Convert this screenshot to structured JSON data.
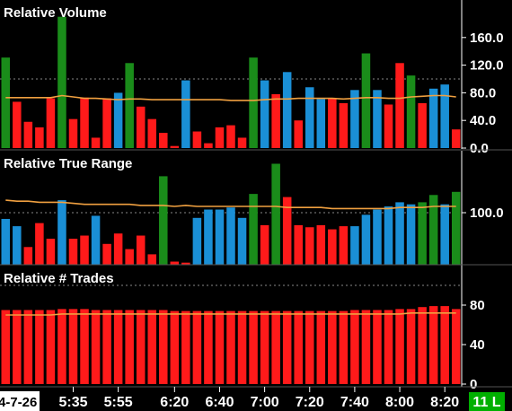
{
  "chart_data": [
    {
      "type": "bar",
      "title": "Relative Volume",
      "ylim": [
        0,
        200
      ],
      "yticks": [
        "160.0",
        "120.0",
        "80.0",
        "40.0",
        "0.0"
      ],
      "ytick_values": [
        160,
        120,
        80,
        40,
        0
      ],
      "reference_line": 100,
      "bar_colors": [
        "green",
        "red",
        "red",
        "red",
        "red",
        "green",
        "red",
        "red",
        "red",
        "red",
        "blue",
        "green",
        "red",
        "red",
        "red",
        "red",
        "blue",
        "red",
        "red",
        "red",
        "red",
        "red",
        "green",
        "blue",
        "red",
        "blue",
        "red",
        "blue",
        "blue",
        "red",
        "red",
        "blue",
        "green",
        "blue",
        "red",
        "red",
        "green",
        "red",
        "blue",
        "blue",
        "red"
      ],
      "values": [
        131,
        67,
        38,
        30,
        72,
        190,
        42,
        73,
        15,
        72,
        80,
        123,
        60,
        42,
        22,
        3,
        98,
        24,
        7,
        30,
        33,
        15,
        131,
        98,
        78,
        110,
        40,
        88,
        71,
        72,
        65,
        84,
        137,
        84,
        63,
        123,
        105,
        65,
        86,
        92,
        27
      ],
      "series": [
        {
          "name": "average",
          "values": [
            73,
            73,
            73,
            73,
            73,
            76,
            74,
            72,
            72,
            71,
            70,
            71,
            71,
            70,
            70,
            70,
            70,
            70,
            70,
            70,
            69,
            69,
            69,
            70,
            71,
            71,
            72,
            72,
            72,
            72,
            71,
            72,
            73,
            73,
            72,
            72,
            74,
            75,
            76,
            76,
            74
          ]
        }
      ]
    },
    {
      "type": "bar",
      "title": "Relative True Range",
      "ylim": [
        50,
        150
      ],
      "yticks": [
        "100.0"
      ],
      "ytick_values": [
        100
      ],
      "reference_line": 100,
      "bar_colors": [
        "blue",
        "blue",
        "red",
        "red",
        "red",
        "blue",
        "red",
        "red",
        "blue",
        "red",
        "red",
        "red",
        "red",
        "red",
        "green",
        "red",
        "red",
        "blue",
        "blue",
        "blue",
        "blue",
        "blue",
        "green",
        "red",
        "green",
        "red",
        "red",
        "red",
        "red",
        "red",
        "red",
        "blue",
        "blue",
        "blue",
        "blue",
        "blue",
        "blue",
        "green",
        "green",
        "blue",
        "green"
      ],
      "values": [
        94,
        87,
        67,
        90,
        75,
        112,
        75,
        78,
        97,
        70,
        80,
        65,
        78,
        60,
        135,
        53,
        52,
        95,
        103,
        103,
        105,
        95,
        118,
        88,
        147,
        115,
        88,
        86,
        88,
        84,
        87,
        87,
        98,
        103,
        106,
        110,
        108,
        110,
        117,
        108,
        120
      ],
      "series": [
        {
          "name": "average",
          "values": [
            112,
            111,
            111,
            110,
            110,
            110,
            109,
            108,
            108,
            108,
            108,
            108,
            107,
            107,
            107,
            106,
            107,
            106,
            106,
            106,
            106,
            106,
            106,
            106,
            106,
            105,
            105,
            105,
            105,
            104,
            104,
            104,
            104,
            104,
            104,
            105,
            105,
            105,
            106,
            106,
            106
          ]
        }
      ]
    },
    {
      "type": "bar",
      "title": "Relative # Trades",
      "ylim": [
        0,
        100
      ],
      "yticks": [
        "80",
        "40",
        "0"
      ],
      "ytick_values": [
        80,
        40,
        0
      ],
      "reference_line": 100,
      "bar_colors": [
        "red"
      ],
      "values": [
        75,
        75,
        75,
        75,
        75,
        76,
        76,
        76,
        75,
        75,
        75,
        75,
        75,
        75,
        75,
        74,
        74,
        74,
        74,
        74,
        74,
        74,
        74,
        74,
        74,
        74,
        74,
        74,
        74,
        74,
        74,
        75,
        75,
        75,
        75,
        76,
        76,
        78,
        79,
        79,
        76
      ],
      "series": [
        {
          "name": "average",
          "values": [
            70,
            70,
            70,
            70,
            70,
            71,
            71,
            71,
            71,
            71,
            71,
            71,
            71,
            71,
            71,
            71,
            71,
            71,
            71,
            71,
            71,
            71,
            71,
            71,
            71,
            71,
            71,
            71,
            71,
            71,
            71,
            71,
            71,
            71,
            71,
            71,
            72,
            72,
            72,
            72,
            72
          ]
        }
      ]
    }
  ],
  "time_axis": {
    "date": "4-7-26",
    "labels": [
      "5:35",
      "5:55",
      "6:20",
      "6:40",
      "7:00",
      "7:20",
      "7:40",
      "8:00",
      "8:20"
    ],
    "label_bars": [
      6,
      10,
      15,
      19,
      23,
      27,
      31,
      35,
      39
    ]
  },
  "badge": "11 L",
  "colors": {
    "background": "#000000",
    "up_bar": "#1a8c1a",
    "down_bar": "#ff1a1a",
    "neutral_bar": "#1a8fd6",
    "average_line": "#f0a040",
    "reference_line": "#888888",
    "badge": "#00b000"
  }
}
